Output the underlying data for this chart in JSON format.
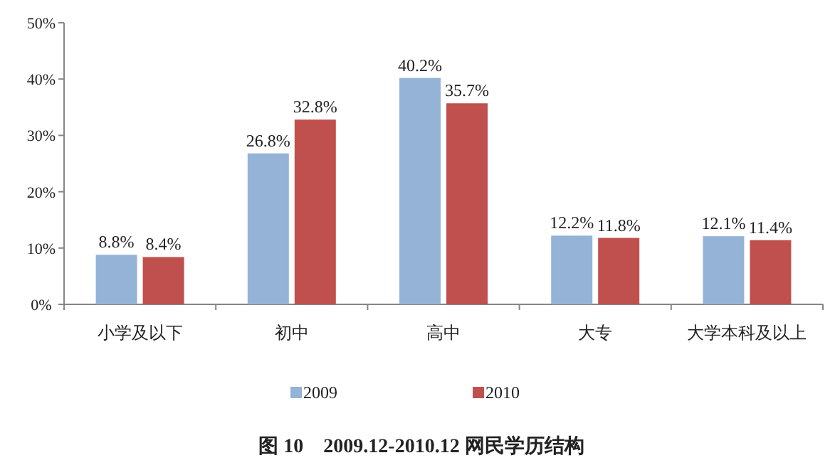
{
  "chart_data": {
    "type": "bar",
    "title": "图 10　2009.12-2010.12 网民学历结构",
    "categories": [
      "小学及以下",
      "初中",
      "高中",
      "大专",
      "大学本科及以上"
    ],
    "series": [
      {
        "name": "2009",
        "color": "#95b3d7",
        "values": [
          8.8,
          26.8,
          40.2,
          12.2,
          12.1
        ],
        "value_labels": [
          "8.8%",
          "26.8%",
          "40.2%",
          "12.2%",
          "12.1%"
        ]
      },
      {
        "name": "2010",
        "color": "#c0504d",
        "values": [
          8.4,
          32.8,
          35.7,
          11.8,
          11.4
        ],
        "value_labels": [
          "8.4%",
          "32.8%",
          "35.7%",
          "11.8%",
          "11.4%"
        ]
      }
    ],
    "ylim": [
      0,
      50
    ],
    "yticks": [
      {
        "value": 0,
        "label": "0%"
      },
      {
        "value": 10,
        "label": "10%"
      },
      {
        "value": 20,
        "label": "20%"
      },
      {
        "value": 30,
        "label": "30%"
      },
      {
        "value": 40,
        "label": "40%"
      },
      {
        "value": 50,
        "label": "50%"
      }
    ],
    "legend": "bottom"
  }
}
